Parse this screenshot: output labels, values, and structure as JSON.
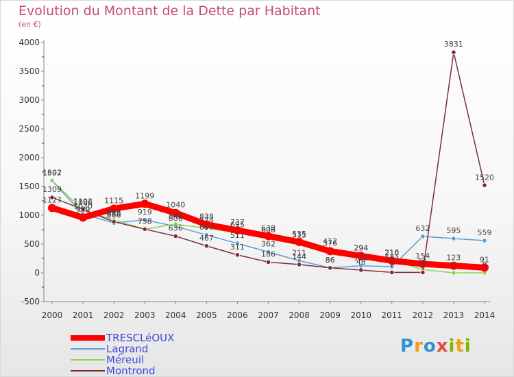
{
  "chart_data": {
    "type": "line",
    "title": "Evolution du Montant de la Dette par Habitant",
    "subtitle": "(en €)",
    "xlabel": "",
    "ylabel": "",
    "ylim": [
      -500,
      4000
    ],
    "yticks": [
      -500,
      0,
      500,
      1000,
      1500,
      2000,
      2500,
      3000,
      3500,
      4000
    ],
    "categories": [
      "2000",
      "2001",
      "2002",
      "2003",
      "2004",
      "2005",
      "2006",
      "2007",
      "2008",
      "2009",
      "2010",
      "2011",
      "2012",
      "2013",
      "2014"
    ],
    "grid": false,
    "legend": "bottom-left",
    "series": [
      {
        "name": "Lagrand",
        "color": "#5b9bd5",
        "values": [
          1597,
          1020,
          866,
          919,
          806,
          657,
          511,
          362,
          211,
          86,
          122,
          107,
          632,
          595,
          559
        ],
        "labels": [
          "1597",
          "1020",
          "866",
          "919",
          "806",
          "657",
          "511",
          "362",
          "211",
          "86",
          "122",
          "107",
          "632",
          "595",
          "559"
        ]
      },
      {
        "name": "Méreuil",
        "color": "#92d050",
        "values": [
          1602,
          1086,
          918,
          758,
          846,
          774,
          695,
          608,
          515,
          412,
          294,
          216,
          55,
          0,
          0
        ],
        "labels": [
          "1602",
          "1086",
          "918",
          "758",
          "846",
          "774",
          "695",
          "608",
          "515",
          "412",
          "294",
          "216",
          "55",
          "0",
          "0"
        ]
      },
      {
        "name": "Montrond",
        "color": "#7a2c3c",
        "values": [
          1309,
          1102,
          886,
          758,
          636,
          467,
          311,
          186,
          144,
          86,
          48,
          7,
          7,
          3831,
          1520
        ],
        "labels": [
          "1309",
          "1102",
          "886",
          "758",
          "636",
          "467",
          "311",
          "186",
          "144",
          "86",
          "48",
          "7",
          "7",
          "3831",
          "1520"
        ]
      },
      {
        "name": "TRESCLéOUX",
        "color": "#ff0000",
        "values": [
          1127,
          959,
          1115,
          1199,
          1040,
          838,
          737,
          638,
          535,
          376,
          294,
          210,
          154,
          123,
          91
        ],
        "labels": [
          "1127",
          "959",
          "1115",
          "1199",
          "1040",
          "838",
          "737",
          "638",
          "535",
          "376",
          "294",
          "210",
          "154",
          "123",
          "91"
        ]
      }
    ]
  },
  "legend_items": [
    {
      "label": "TRESCLéOUX",
      "color": "#ff0000",
      "thick": true
    },
    {
      "label": "Lagrand",
      "color": "#5b9bd5",
      "thick": false
    },
    {
      "label": "Méreuil",
      "color": "#92d050",
      "thick": false
    },
    {
      "label": "Montrond",
      "color": "#7a2c3c",
      "thick": false
    }
  ],
  "brand": {
    "letters": [
      "P",
      "r",
      "o",
      "x",
      "i",
      "t",
      "i"
    ],
    "colors": [
      "#2f8fd8",
      "#f39c12",
      "#2f8fd8",
      "#e74c3c",
      "#7ab800",
      "#f39c12",
      "#7ab800"
    ]
  }
}
